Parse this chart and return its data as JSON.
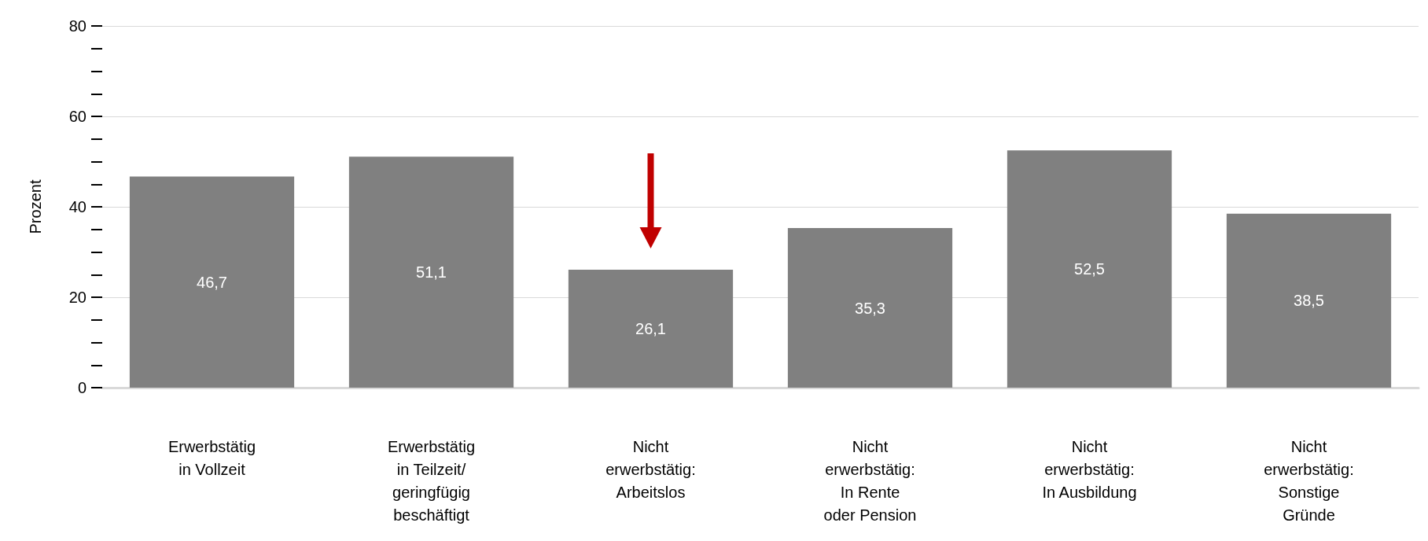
{
  "chart_data": {
    "type": "bar",
    "ylabel": "Prozent",
    "categories": [
      "Erwerbstätig\nin Vollzeit",
      "Erwerbstätig\nin Teilzeit/\ngeringfügig\nbeschäftigt",
      "Nicht\nerwerbstätig:\nArbeitslos",
      "Nicht\nerwerbstätig:\nIn Rente\noder Pension",
      "Nicht\nerwerbstätig:\nIn Ausbildung",
      "Nicht\nerwerbstätig:\nSonstige\nGründe"
    ],
    "values": [
      46.7,
      51.1,
      26.1,
      35.3,
      52.5,
      38.5
    ],
    "value_labels": [
      "46,7",
      "51,1",
      "26,1",
      "35,3",
      "52,5",
      "38,5"
    ],
    "color": "#808080",
    "ylim": [
      0,
      80
    ],
    "yticks": [
      0,
      {
        "value": 5,
        "label": null
      },
      {
        "value": 10,
        "label": null
      },
      {
        "value": 15,
        "label": null
      },
      20,
      {
        "value": 25,
        "label": null
      },
      {
        "value": 30,
        "label": null
      },
      {
        "value": 35,
        "label": null
      },
      40,
      {
        "value": 45,
        "label": null
      },
      {
        "value": 50,
        "label": null
      },
      {
        "value": 55,
        "label": null
      },
      60,
      {
        "value": 65,
        "label": null
      },
      {
        "value": 70,
        "label": null
      },
      {
        "value": 75,
        "label": null
      },
      80
    ],
    "grid": "y"
  }
}
